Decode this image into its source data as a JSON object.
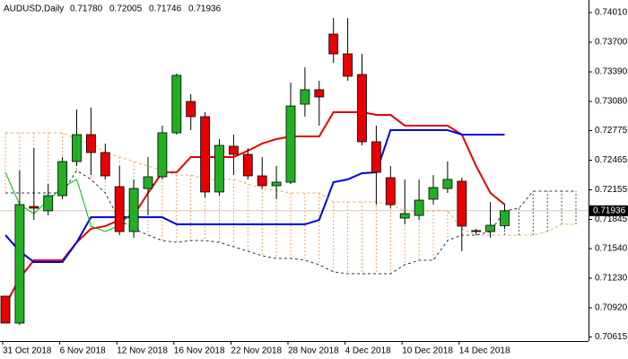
{
  "chart_data": {
    "type": "candlestick",
    "title": "AUDUSD,Daily",
    "ohlc_labels": [
      "0.71780",
      "0.72005",
      "0.71746",
      "0.71936"
    ],
    "last_price_label": "0.71936",
    "categories": [
      "31 Oct 2018",
      null,
      null,
      null,
      "6 Nov 2018",
      null,
      null,
      null,
      "12 Nov 2018",
      null,
      null,
      null,
      "16 Nov 2018",
      null,
      null,
      null,
      "22 Nov 2018",
      null,
      null,
      null,
      "28 Nov 2018",
      null,
      null,
      null,
      "4 Dec 2018",
      null,
      null,
      null,
      "10 Dec 2018",
      null,
      null,
      null,
      "14 Dec 2018",
      null,
      null,
      null,
      null,
      null,
      null,
      null,
      null
    ],
    "open": [
      0.71042,
      0.7076,
      0.71981,
      0.71935,
      0.72094,
      0.72451,
      0.72733,
      0.72545,
      0.72188,
      0.71718,
      0.72169,
      0.72291,
      0.72752,
      0.7308,
      0.72921,
      0.72132,
      0.72611,
      0.72526,
      0.72301,
      0.72198,
      0.72235,
      0.73052,
      0.73203,
      0.73785,
      0.73578,
      0.73362,
      0.72658,
      0.72282,
      0.71859,
      0.71887,
      0.72057,
      0.72169,
      0.72245,
      0.71728,
      0.71718,
      0.7178,
      null,
      null,
      null,
      null,
      null
    ],
    "high": [
      0.71042,
      0.72357,
      0.72592,
      0.72216,
      0.72498,
      0.72996,
      0.73015,
      0.72639,
      0.72404,
      0.72264,
      0.72498,
      0.72827,
      0.73372,
      0.73156,
      0.72968,
      0.72686,
      0.72733,
      0.72592,
      0.72498,
      0.72404,
      0.73278,
      0.73437,
      0.73297,
      0.73954,
      0.73954,
      0.73578,
      0.72827,
      0.72404,
      0.72264,
      0.72264,
      0.7231,
      0.72451,
      0.72282,
      0.71747,
      0.72028,
      0.72005,
      null,
      null,
      null,
      null,
      null
    ],
    "low": [
      0.7076,
      0.70741,
      0.7184,
      0.71887,
      0.72057,
      0.72404,
      0.7231,
      0.72264,
      0.71681,
      0.71653,
      0.71887,
      0.72264,
      0.72733,
      0.7278,
      0.72075,
      0.72094,
      0.7231,
      0.72264,
      0.72169,
      0.72057,
      0.72216,
      0.72921,
      0.72827,
      0.73484,
      0.73297,
      0.7262,
      0.72,
      0.71963,
      0.71794,
      0.7184,
      0.72,
      0.72122,
      0.71512,
      0.71681,
      0.71653,
      0.71746,
      null,
      null,
      null,
      null,
      null
    ],
    "close": [
      0.7076,
      0.72,
      0.71963,
      0.72094,
      0.72451,
      0.72733,
      0.72545,
      0.72301,
      0.71718,
      0.72169,
      0.72291,
      0.72752,
      0.73353,
      0.72921,
      0.72132,
      0.7262,
      0.72526,
      0.72301,
      0.72198,
      0.72235,
      0.73033,
      0.73203,
      0.73127,
      0.73578,
      0.73344,
      0.72658,
      0.72338,
      0.72,
      0.71906,
      0.72047,
      0.72179,
      0.72264,
      0.71775,
      0.71718,
      0.71784,
      0.71936,
      null,
      null,
      null,
      null,
      null
    ],
    "up_color": "#22b022",
    "down_color": "#e80000",
    "lines": [
      {
        "color": "#e80000",
        "width": 2,
        "dash": false,
        "values": [
          0.70948,
          0.7123,
          0.71418,
          0.71418,
          0.71418,
          0.71606,
          0.71747,
          0.71775,
          0.7184,
          0.71887,
          0.72122,
          0.72338,
          0.72338,
          0.72498,
          0.72498,
          0.72498,
          0.72498,
          0.72564,
          0.72639,
          0.72686,
          0.72714,
          0.72714,
          0.72714,
          0.72968,
          0.72968,
          0.72968,
          0.7294,
          0.7294,
          0.72827,
          0.72827,
          0.72827,
          0.72827,
          0.72733,
          0.72404,
          0.72122,
          0.72,
          null,
          null,
          null,
          null,
          null
        ]
      },
      {
        "color": "#0000e0",
        "width": 2,
        "dash": false,
        "values": [
          0.71681,
          0.71512,
          0.71399,
          0.71399,
          0.71399,
          0.71606,
          0.71869,
          0.71869,
          0.71869,
          0.71869,
          0.71869,
          0.71869,
          0.71794,
          0.71794,
          0.71794,
          0.71794,
          0.71794,
          0.71794,
          0.71794,
          0.71794,
          0.71794,
          0.71794,
          0.7184,
          0.72235,
          0.72264,
          0.72329,
          0.72338,
          0.7278,
          0.7278,
          0.7278,
          0.7278,
          0.7278,
          0.72733,
          0.72733,
          0.72733,
          0.72733,
          null,
          null,
          null,
          null,
          null
        ]
      },
      {
        "color": "#00c000",
        "width": 1,
        "dash": false,
        "values": [
          0.72338,
          0.72,
          0.71906,
          0.72047,
          0.72179,
          0.72264,
          0.71775,
          0.71718,
          0.71784,
          0.71936,
          null,
          null,
          null,
          null,
          null,
          null,
          null,
          null,
          null,
          null,
          null,
          null,
          null,
          null,
          null,
          null,
          null,
          null,
          null,
          null,
          null,
          null,
          null,
          null,
          null,
          null,
          null,
          null,
          null,
          null,
          null
        ]
      },
      {
        "color": "#f4a460",
        "width": 1,
        "dash": true,
        "values": [
          0.72752,
          0.72752,
          0.72752,
          0.72752,
          0.72752,
          0.72686,
          0.72639,
          0.72545,
          0.72498,
          0.72451,
          0.72404,
          0.72357,
          0.7231,
          0.7231,
          0.72264,
          0.72264,
          0.72264,
          0.72216,
          0.72169,
          0.7215,
          0.72122,
          0.72122,
          0.72122,
          0.72028,
          0.72028,
          0.72028,
          0.72028,
          0.72,
          0.71935,
          0.71935,
          0.71935,
          0.71935,
          0.71747,
          0.71681,
          0.71681,
          0.71681,
          0.71681,
          0.71681,
          0.71718,
          0.71794,
          0.71794
        ]
      },
      {
        "color": "#303040",
        "width": 1,
        "dash": true,
        "values": [
          0.72122,
          0.72122,
          0.72122,
          0.72122,
          0.72122,
          0.72357,
          0.72264,
          0.72122,
          0.7184,
          0.71747,
          0.71681,
          0.71624,
          0.71606,
          0.71624,
          0.71624,
          0.71606,
          0.71559,
          0.71512,
          0.71465,
          0.71437,
          0.71437,
          0.71418,
          0.71371,
          0.71296,
          0.71277,
          0.71277,
          0.71277,
          0.71277,
          0.71371,
          0.71418,
          0.71418,
          0.71624,
          0.71681,
          0.71681,
          0.71718,
          0.71935,
          0.71963,
          0.72141,
          0.72141,
          0.72141,
          0.72141
        ]
      }
    ],
    "cloud": true,
    "cloud_up_color": "#f4a460",
    "cloud_down_color": "#505060",
    "ylim": [
      0.70572,
      0.74142
    ],
    "yticks": [
      {
        "value": 0.7401,
        "label": "0.74010"
      },
      {
        "value": 0.737,
        "label": "0.73700"
      },
      {
        "value": 0.7339,
        "label": "0.73390"
      },
      {
        "value": 0.7308,
        "label": "0.73080"
      },
      {
        "value": 0.72775,
        "label": "0.72775"
      },
      {
        "value": 0.72465,
        "label": "0.72465"
      },
      {
        "value": 0.72155,
        "label": "0.72155"
      },
      {
        "value": 0.71845,
        "label": "0.71845"
      },
      {
        "value": 0.7154,
        "label": "0.71540"
      },
      {
        "value": 0.7123,
        "label": "0.71230"
      },
      {
        "value": 0.7092,
        "label": "0.70920"
      },
      {
        "value": 0.70615,
        "label": "0.70615"
      }
    ]
  }
}
